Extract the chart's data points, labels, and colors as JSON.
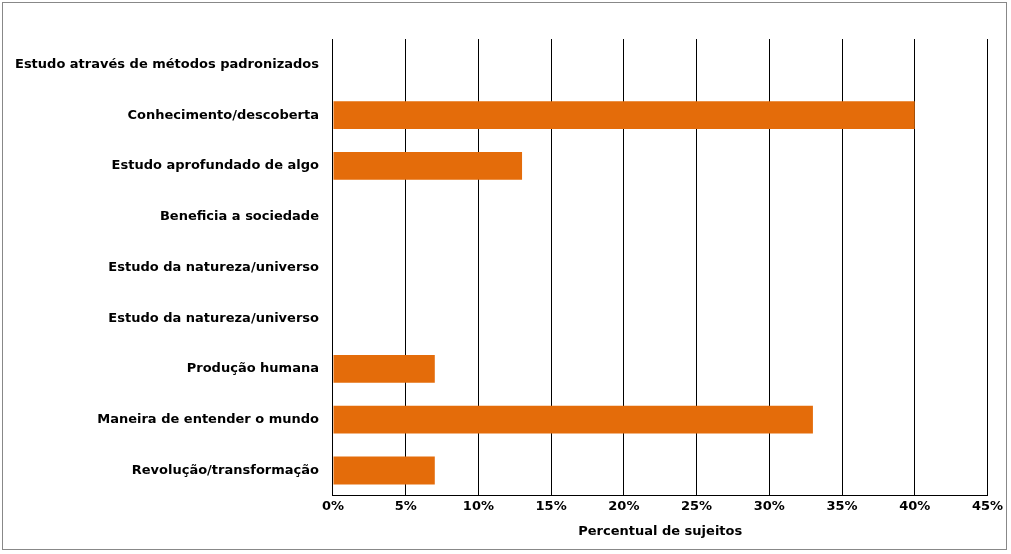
{
  "chart_data": {
    "type": "bar",
    "orientation": "horizontal",
    "xlabel": "Percentual de sujeitos",
    "categories": [
      "Estudo através de métodos padronizados",
      "Conhecimento/descoberta",
      "Estudo aprofundado de algo",
      "Beneficia a sociedade",
      "Estudo da natureza/universo",
      "Estudo da natureza/universo",
      "Produção humana",
      "Maneira de entender o mundo",
      "Revolução/transformação"
    ],
    "values": [
      0,
      40,
      13,
      0,
      0,
      0,
      7,
      33,
      7
    ],
    "color": "#e46c0a",
    "xlim": [
      0,
      45
    ],
    "xticks": [
      {
        "value": 0,
        "label": "0%"
      },
      {
        "value": 5,
        "label": "5%"
      },
      {
        "value": 10,
        "label": "10%"
      },
      {
        "value": 15,
        "label": "15%"
      },
      {
        "value": 20,
        "label": "20%"
      },
      {
        "value": 25,
        "label": "25%"
      },
      {
        "value": 30,
        "label": "30%"
      },
      {
        "value": 35,
        "label": "35%"
      },
      {
        "value": 40,
        "label": "40%"
      },
      {
        "value": 45,
        "label": "45%"
      }
    ],
    "grid": "x",
    "legend": false
  }
}
